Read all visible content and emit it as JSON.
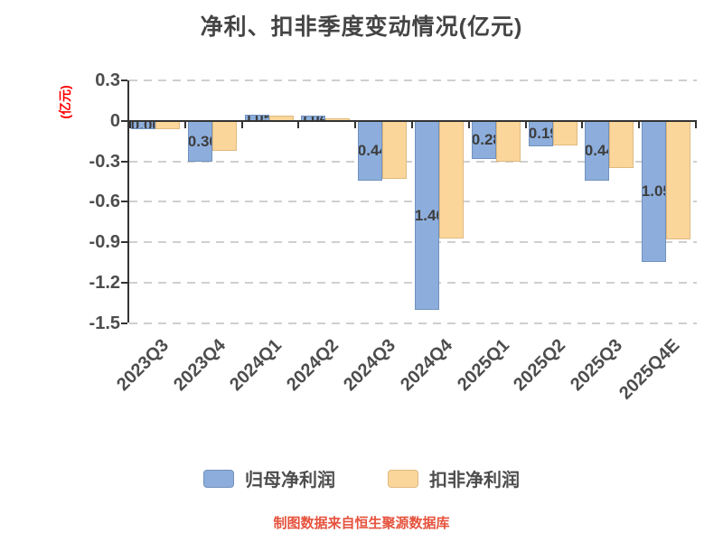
{
  "title": "净利、扣非季度变动情况(亿元)",
  "y_axis": {
    "unit_label": "(亿元)",
    "ticks": [
      {
        "label": "0.3",
        "value": 0.3
      },
      {
        "label": "0",
        "value": 0
      },
      {
        "label": "-0.3",
        "value": -0.3
      },
      {
        "label": "-0.6",
        "value": -0.6
      },
      {
        "label": "-0.9",
        "value": -0.9
      },
      {
        "label": "-1.2",
        "value": -1.2
      },
      {
        "label": "-1.5",
        "value": -1.5
      }
    ]
  },
  "chart_data": {
    "type": "bar",
    "categories": [
      "2023Q3",
      "2023Q4",
      "2024Q1",
      "2024Q2",
      "2024Q3",
      "2024Q4",
      "2025Q1",
      "2025Q2",
      "2025Q3",
      "2025Q4E"
    ],
    "series": [
      {
        "name": "归母净利润",
        "key": "parent-net-profit",
        "color": "#8DAEDC",
        "border_color": "#7191BE",
        "values": [
          -0.06,
          -0.3,
          0.05,
          0.04,
          -0.44,
          -1.4,
          -0.28,
          -0.19,
          -0.44,
          -1.05
        ],
        "labels": [
          "-0.06",
          "-0.30",
          "0.05",
          "0.04",
          "-0.44",
          "-1.40",
          "-0.28",
          "-0.19",
          "-0.44",
          "-1.05"
        ],
        "show_labels": true
      },
      {
        "name": "扣非净利润",
        "key": "non-recurring-net-profit",
        "color": "#FBD69B",
        "border_color": "#DFB97E",
        "values": [
          -0.06,
          -0.22,
          0.04,
          0.02,
          -0.43,
          -0.87,
          -0.3,
          -0.18,
          -0.35,
          -0.88
        ],
        "labels": [],
        "show_labels": false
      }
    ],
    "title": "净利、扣非季度变动情况(亿元)",
    "xlabel": "",
    "ylabel": "(亿元)",
    "ylim": [
      -1.5,
      0.3
    ],
    "grid": "horizontal dashed",
    "legend_position": "bottom"
  },
  "footer": {
    "text": "制图数据来自恒生聚源数据库"
  },
  "colors": {
    "axis_line": "#333333",
    "gridline": "#cfcfcf",
    "title_text": "#444444",
    "axis_text": "#4d4d4d",
    "bar_label_text": "#3d3d3d",
    "unit_label_red": "#ff0000",
    "footer_red": "#e6523d"
  }
}
